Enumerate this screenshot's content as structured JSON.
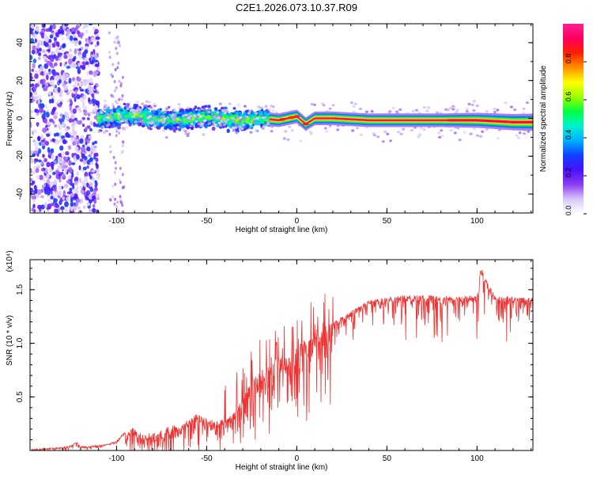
{
  "figure": {
    "title": "C2E1.2026.073.10.37.R09"
  },
  "chart_data": [
    {
      "type": "heatmap",
      "title": "C2E1.2026.073.10.37.R09",
      "xlabel": "Height of straight line (km)",
      "ylabel": "Frequency (Hz)",
      "xlim": [
        -148,
        131
      ],
      "ylim": [
        -50,
        50
      ],
      "x_ticks": [
        -100,
        -50,
        0,
        50,
        100
      ],
      "y_ticks": [
        -40,
        -20,
        0,
        20,
        40
      ],
      "colorbar": {
        "label": "Normalized spectral amplitude",
        "range": [
          0,
          1
        ],
        "ticks": [
          "0.0",
          "0.2",
          "0.4",
          "0.6",
          "0.8"
        ],
        "colors": [
          "#ffffff",
          "#d8c8f8",
          "#8c3cf0",
          "#4a10ff",
          "#1040ff",
          "#00b0ff",
          "#00f0d0",
          "#00ff40",
          "#a0ff00",
          "#ffff00",
          "#ff9000",
          "#ff2000",
          "#ff0060",
          "#ff2090"
        ]
      },
      "description_series": [
        {
          "segment": "scattered noise",
          "x_range": [
            -148,
            -110
          ],
          "frequency_spread": [
            -50,
            50
          ],
          "amplitude": [
            0.05,
            0.3
          ]
        },
        {
          "segment": "broadband band",
          "x_range": [
            -110,
            -15
          ],
          "frequency_spread": [
            -8,
            8
          ],
          "amplitude": [
            0.3,
            0.6
          ]
        },
        {
          "segment": "narrow band",
          "x_range": [
            -15,
            131
          ],
          "frequency_spread": [
            -4,
            3
          ],
          "amplitude": [
            0.5,
            1.0
          ]
        }
      ],
      "ridge": {
        "x": [
          -110,
          -100,
          -90,
          -80,
          -70,
          -60,
          -50,
          -40,
          -30,
          -20,
          -10,
          0,
          5,
          10,
          20,
          40,
          60,
          80,
          100,
          120,
          131
        ],
        "y": [
          0,
          1,
          2,
          0,
          -1,
          0,
          1,
          0,
          -1,
          0,
          -1,
          1,
          -3,
          0,
          0,
          -1,
          -1,
          -1,
          -1,
          -2,
          -2
        ]
      }
    },
    {
      "type": "line",
      "xlabel": "Height of straight line (km)",
      "ylabel": "SNR (10 * v/v)",
      "y_multiplier": "(x10⁴)",
      "xlim": [
        -148,
        131
      ],
      "ylim": [
        0,
        1.78
      ],
      "x_ticks": [
        -100,
        -50,
        0,
        50,
        100
      ],
      "y_ticks": [
        0.5,
        1.0,
        1.5
      ],
      "color": "#ee3333",
      "series": [
        {
          "x": [
            -148,
            -140,
            -130,
            -125,
            -122,
            -120,
            -115,
            -110,
            -105,
            -100,
            -95,
            -90,
            -85,
            -80,
            -75,
            -70,
            -65,
            -60,
            -55,
            -50,
            -45,
            -40,
            -35,
            -30,
            -25,
            -20,
            -15,
            -10,
            -5,
            0,
            5,
            10,
            15,
            20,
            25,
            30,
            35,
            40,
            50,
            60,
            70,
            80,
            90,
            100,
            102,
            110,
            120,
            131
          ],
          "y": [
            0.01,
            0.02,
            0.03,
            0.05,
            0.08,
            0.04,
            0.04,
            0.05,
            0.06,
            0.09,
            0.18,
            0.22,
            0.15,
            0.17,
            0.2,
            0.25,
            0.22,
            0.3,
            0.35,
            0.3,
            0.28,
            0.3,
            0.35,
            0.5,
            0.65,
            0.75,
            0.8,
            0.9,
            0.85,
            0.95,
            1.05,
            1.1,
            1.15,
            1.2,
            1.25,
            1.3,
            1.35,
            1.4,
            1.43,
            1.45,
            1.45,
            1.44,
            1.43,
            1.45,
            1.72,
            1.44,
            1.44,
            1.42
          ]
        }
      ]
    }
  ]
}
